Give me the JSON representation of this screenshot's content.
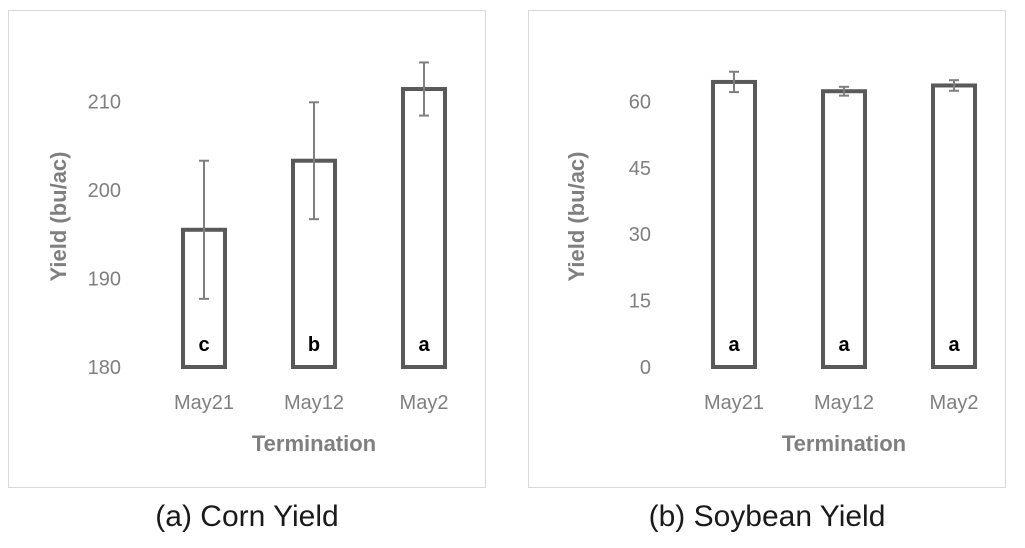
{
  "chart_data": [
    {
      "type": "bar",
      "caption": "(a) Corn Yield",
      "xlabel": "Termination",
      "ylabel": "Yield (bu/ac)",
      "categories": [
        "May21",
        "May12",
        "May2"
      ],
      "values": [
        195.5,
        203.3,
        211.4
      ],
      "error": [
        7.8,
        6.6,
        3.0
      ],
      "letters": [
        "c",
        "b",
        "a"
      ],
      "ylim": [
        180,
        214
      ],
      "yticks": [
        180,
        190,
        200,
        210
      ],
      "grid": false,
      "bar_fill": "#ffffff",
      "bar_edge": "#595959"
    },
    {
      "type": "bar",
      "caption": "(b) Soybean Yield",
      "xlabel": "Termination",
      "ylabel": "Yield (bu/ac)",
      "categories": [
        "May21",
        "May12",
        "May2"
      ],
      "values": [
        64.4,
        62.3,
        63.6
      ],
      "error": [
        2.3,
        1.0,
        1.2
      ],
      "letters": [
        "a",
        "a",
        "a"
      ],
      "ylim": [
        0,
        68
      ],
      "yticks": [
        0,
        15,
        30,
        45,
        60
      ],
      "grid": false,
      "bar_fill": "#ffffff",
      "bar_edge": "#595959"
    }
  ]
}
